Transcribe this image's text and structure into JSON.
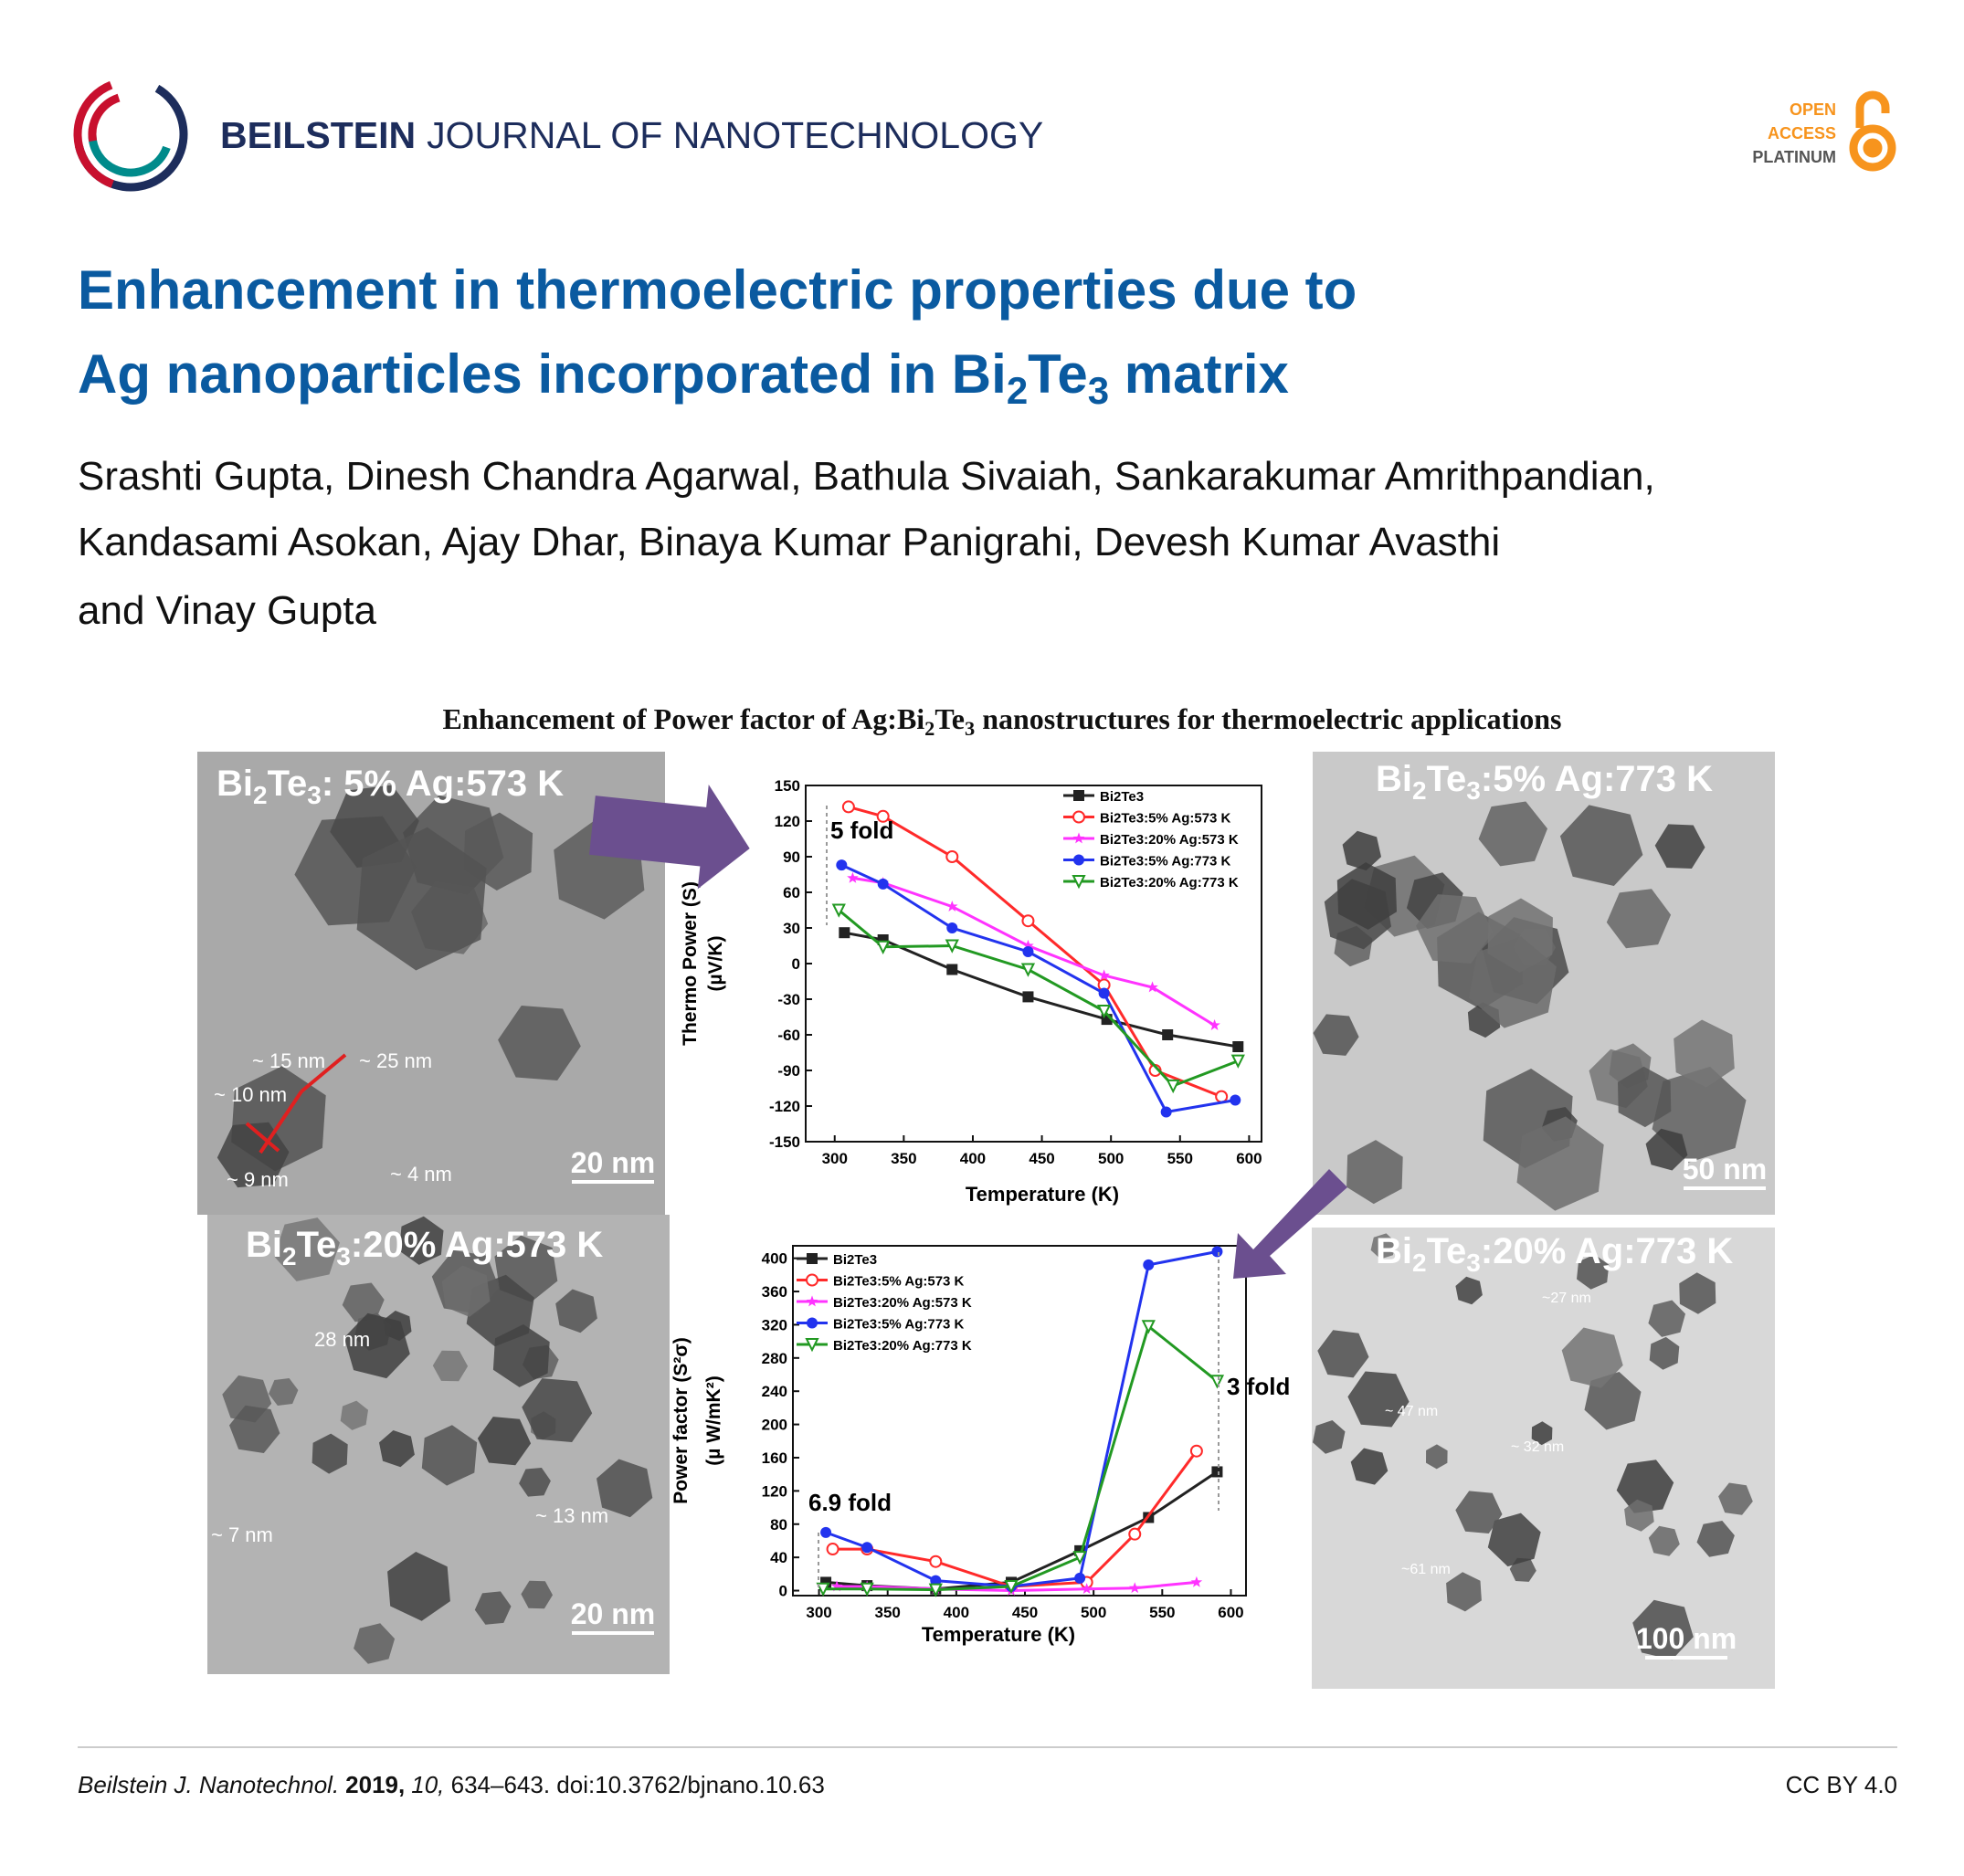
{
  "header": {
    "journal_bold": "BEILSTEIN",
    "journal_rest": "JOURNAL OF NANOTECHNOLOGY",
    "badge_line1": "OPEN",
    "badge_line2": "ACCESS",
    "badge_line3": "PLATINUM"
  },
  "article": {
    "title_line1": "Enhancement in thermoelectric properties due to",
    "title_line2": [
      "Ag nanoparticles incorporated in Bi",
      "2",
      "Te",
      "3",
      " matrix"
    ],
    "authors": [
      "Srashti Gupta, Dinesh Chandra Agarwal, Bathula Sivaiah, Sankarakumar Amrithpandian,",
      "Kandasami Asokan, Ajay Dhar, Binaya Kumar Panigrahi, Devesh Kumar Avasthi",
      "and Vinay Gupta"
    ]
  },
  "graphical_abstract": {
    "title": [
      "Enhancement of Power factor of Ag:Bi",
      "2",
      "Te",
      "3",
      " nanostructures for thermoelectric applications"
    ],
    "panels": [
      {
        "label": [
          "Bi",
          "2",
          "Te",
          "3",
          ": 5% Ag:573 K"
        ],
        "scale_bar": "20 nm",
        "annotations": [
          "~ 15 nm",
          "~ 25 nm",
          "~ 10 nm",
          "~ 9 nm",
          "~ 4 nm"
        ]
      },
      {
        "label": [
          "Bi",
          "2",
          "Te",
          "3",
          ":5% Ag:773 K"
        ],
        "scale_bar": "50 nm"
      },
      {
        "label": [
          "Bi",
          "2",
          "Te",
          "3",
          ":20% Ag:573 K"
        ],
        "scale_bar": "20 nm",
        "annotations": [
          "28 nm",
          "~ 13 nm",
          "~ 7 nm"
        ]
      },
      {
        "label": [
          "Bi",
          "2",
          "Te",
          "3",
          ":20% Ag:773 K"
        ],
        "scale_bar": "100 nm",
        "annotations": [
          "~27 nm",
          "~ 47 nm",
          "~ 32 nm",
          "~61 nm"
        ]
      }
    ],
    "charts": [
      {
        "type": "line",
        "x_label": "Temperature (K)",
        "y_label": [
          "Thermo Power (S)",
          "(µV/K)"
        ],
        "xlim": [
          279,
          609
        ],
        "xticks": [
          300,
          350,
          400,
          450,
          500,
          550,
          600
        ],
        "ylim": [
          -150,
          150
        ],
        "yticks": [
          -150,
          -120,
          -90,
          -60,
          -30,
          0,
          30,
          60,
          90,
          120,
          150
        ],
        "annotations": [
          "5 fold"
        ],
        "series": [
          {
            "name": "Bi2Te3",
            "color": "#222222",
            "marker": "square",
            "x": [
              307,
              335,
              385,
              440,
              497,
              541,
              592
            ],
            "values": [
              26,
              20,
              -5,
              -28,
              -47,
              -60,
              -70
            ]
          },
          {
            "name": "Bi2Te3:5% Ag:573 K",
            "color": "#ff2a2a",
            "marker": "circle-open",
            "x": [
              310,
              335,
              385,
              440,
              495,
              532,
              580
            ],
            "values": [
              132,
              124,
              90,
              36,
              -18,
              -90,
              -112
            ]
          },
          {
            "name": "Bi2Te3:20% Ag:573 K",
            "color": "#ff33ff",
            "marker": "star",
            "x": [
              313,
              335,
              385,
              440,
              495,
              530,
              575
            ],
            "values": [
              72,
              68,
              48,
              15,
              -10,
              -20,
              -52
            ]
          },
          {
            "name": "Bi2Te3:5% Ag:773 K",
            "color": "#2233ee",
            "marker": "circle",
            "x": [
              305,
              335,
              385,
              440,
              495,
              540,
              590
            ],
            "values": [
              83,
              67,
              30,
              10,
              -25,
              -125,
              -115
            ]
          },
          {
            "name": "Bi2Te3:20% Ag:773 K",
            "color": "#229922",
            "marker": "triangle-open",
            "x": [
              303,
              335,
              385,
              440,
              495,
              545,
              592
            ],
            "values": [
              45,
              14,
              15,
              -5,
              -40,
              -103,
              -82
            ]
          }
        ]
      },
      {
        "type": "line",
        "x_label": "Temperature (K)",
        "y_label": [
          "Power factor (S²σ)",
          "(µ W/mK²)"
        ],
        "xlim": [
          281,
          611
        ],
        "xticks": [
          300,
          350,
          400,
          450,
          500,
          550,
          600
        ],
        "ylim": [
          -6,
          415
        ],
        "yticks": [
          0,
          40,
          80,
          120,
          160,
          200,
          240,
          280,
          320,
          360,
          400
        ],
        "annotations": [
          "6.9 fold",
          "3 fold"
        ],
        "series": [
          {
            "name": "Bi2Te3",
            "color": "#222222",
            "marker": "square",
            "x": [
              305,
              335,
              385,
              440,
              490,
              540,
              590
            ],
            "values": [
              10,
              6,
              2,
              10,
              48,
              88,
              143
            ]
          },
          {
            "name": "Bi2Te3:5% Ag:573 K",
            "color": "#ff2a2a",
            "marker": "circle-open",
            "x": [
              310,
              335,
              385,
              440,
              495,
              530,
              575
            ],
            "values": [
              50,
              50,
              35,
              5,
              10,
              68,
              168
            ]
          },
          {
            "name": "Bi2Te3:20% Ag:573 K",
            "color": "#ff33ff",
            "marker": "star",
            "x": [
              313,
              335,
              385,
              440,
              495,
              530,
              575
            ],
            "values": [
              5,
              5,
              2,
              0,
              2,
              3,
              10
            ]
          },
          {
            "name": "Bi2Te3:5% Ag:773 K",
            "color": "#2233ee",
            "marker": "circle",
            "x": [
              305,
              335,
              385,
              440,
              490,
              540,
              590
            ],
            "values": [
              70,
              52,
              12,
              5,
              15,
              392,
              408
            ]
          },
          {
            "name": "Bi2Te3:20% Ag:773 K",
            "color": "#229922",
            "marker": "triangle-open",
            "x": [
              303,
              335,
              385,
              440,
              490,
              540,
              590
            ],
            "values": [
              2,
              2,
              1,
              5,
              40,
              318,
              252
            ]
          }
        ]
      }
    ]
  },
  "footer": {
    "journal": "Beilstein J. Nanotechnol.",
    "year": "2019,",
    "volume": "10,",
    "rest": " 634–643. doi:10.3762/bjnano.10.63",
    "license": "CC BY 4.0"
  }
}
